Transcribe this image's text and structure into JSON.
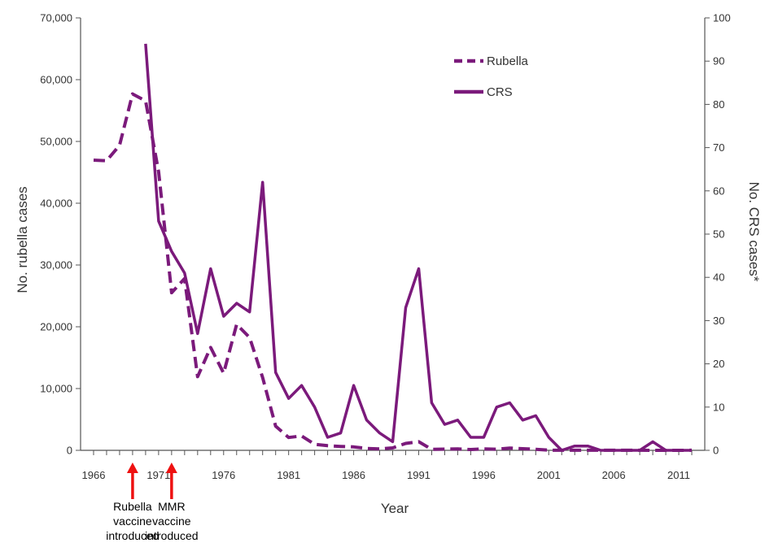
{
  "chart_data": {
    "type": "line",
    "title": "",
    "xlabel": "Year",
    "ylabel_left": "No. rubella cases",
    "ylabel_right": "No. CRS cases*",
    "xlim": [
      1965,
      2013
    ],
    "ylim_left": [
      0,
      70000
    ],
    "ylim_right": [
      0,
      100
    ],
    "x_ticks": [
      "1966",
      "1971",
      "1976",
      "1981",
      "1986",
      "1991",
      "1996",
      "2001",
      "2006",
      "2011"
    ],
    "y_ticks_left": [
      "0",
      "10,000",
      "20,000",
      "30,000",
      "40,000",
      "50,000",
      "60,000",
      "70,000"
    ],
    "y_ticks_right": [
      "0",
      "10",
      "20",
      "30",
      "40",
      "50",
      "60",
      "70",
      "80",
      "90",
      "100"
    ],
    "legend_position": "top-right",
    "series": [
      {
        "name": "Rubella",
        "axis": "left",
        "style": "dashed",
        "color": "#7b1a7b",
        "x": [
          1966,
          1967,
          1968,
          1969,
          1970,
          1971,
          1972,
          1973,
          1974,
          1975,
          1976,
          1977,
          1978,
          1979,
          1980,
          1981,
          1982,
          1983,
          1984,
          1985,
          1986,
          1987,
          1988,
          1989,
          1990,
          1991,
          1992,
          1993,
          1994,
          1995,
          1996,
          1997,
          1998,
          1999,
          2000,
          2001,
          2002,
          2003,
          2004,
          2005,
          2006,
          2007,
          2008,
          2009,
          2010,
          2011,
          2012
        ],
        "y": [
          46975,
          46888,
          49371,
          57686,
          56552,
          45086,
          25507,
          27804,
          11917,
          16652,
          12491,
          20395,
          18269,
          11795,
          3904,
          2077,
          2325,
          970,
          752,
          630,
          551,
          306,
          225,
          396,
          1125,
          1401,
          160,
          192,
          227,
          128,
          238,
          181,
          364,
          267,
          176,
          23,
          18,
          7,
          10,
          11,
          11,
          12,
          16,
          3,
          5,
          4,
          9
        ]
      },
      {
        "name": "CRS",
        "axis": "right",
        "style": "solid",
        "color": "#7b1a7b",
        "x": [
          1966,
          1967,
          1968,
          1969,
          1970,
          1971,
          1972,
          1973,
          1974,
          1975,
          1976,
          1977,
          1978,
          1979,
          1980,
          1981,
          1982,
          1983,
          1984,
          1985,
          1986,
          1987,
          1988,
          1989,
          1990,
          1991,
          1992,
          1993,
          1994,
          1995,
          1996,
          1997,
          1998,
          1999,
          2000,
          2001,
          2002,
          2003,
          2004,
          2005,
          2006,
          2007,
          2008,
          2009,
          2010,
          2011,
          2012
        ],
        "y": [
          null,
          null,
          null,
          null,
          94,
          53,
          46,
          41,
          27,
          42,
          31,
          34,
          32,
          62,
          18,
          12,
          15,
          10,
          3,
          4,
          15,
          7,
          4,
          2,
          33,
          42,
          11,
          6,
          7,
          3,
          3,
          10,
          11,
          7,
          8,
          3,
          0,
          1,
          1,
          0,
          0,
          0,
          0,
          2,
          0,
          0,
          0
        ]
      }
    ]
  },
  "annotations": [
    {
      "id": "rubella-vaccine",
      "year": 1969,
      "lines": [
        "Rubella",
        "vaccine",
        "introduced"
      ],
      "arrow_color": "#ee1111"
    },
    {
      "id": "mmr-vaccine",
      "year": 1972,
      "lines": [
        "MMR",
        "vaccine",
        "introduced"
      ],
      "arrow_color": "#ee1111"
    }
  ]
}
